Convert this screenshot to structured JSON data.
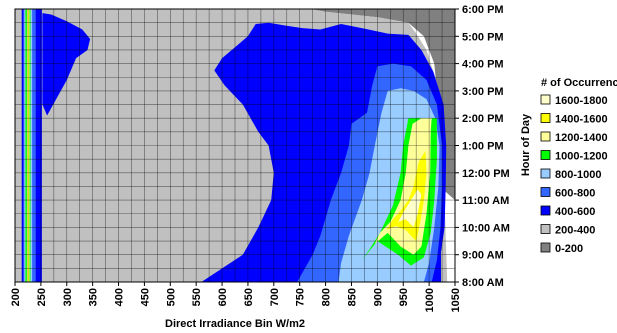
{
  "chart_data": {
    "type": "contour",
    "xlabel": "Direct Irradiance Bin W/m2",
    "ylabel": "Hour of Day",
    "x_ticks": [
      "200",
      "250",
      "300",
      "350",
      "400",
      "450",
      "500",
      "550",
      "600",
      "650",
      "700",
      "750",
      "800",
      "850",
      "900",
      "950",
      "1000",
      "1050"
    ],
    "y_ticks": [
      "8:00 AM",
      "9:00 AM",
      "10:00 AM",
      "11:00 AM",
      "12:00 PM",
      "1:00 PM",
      "2:00 PM",
      "3:00 PM",
      "4:00 PM",
      "5:00 PM",
      "6:00 PM"
    ],
    "xlim": [
      200,
      1050
    ],
    "ylim_hours": [
      8,
      18
    ],
    "grid": true,
    "legend": {
      "title": "# of Occurrences",
      "position": "right",
      "items": [
        {
          "label": "1600-1800",
          "color": "#ffffcc"
        },
        {
          "label": "1400-1600",
          "color": "#ffff00"
        },
        {
          "label": "1200-1400",
          "color": "#ffff99"
        },
        {
          "label": "1000-1200",
          "color": "#00ff00"
        },
        {
          "label": "800-1000",
          "color": "#99ccff"
        },
        {
          "label": "600-800",
          "color": "#3366ff"
        },
        {
          "label": "400-600",
          "color": "#0000ff"
        },
        {
          "label": "200-400",
          "color": "#c0c0c0"
        },
        {
          "label": "0-200",
          "color": "#808080"
        }
      ]
    },
    "regions": [
      {
        "level": "0-200",
        "color": "#808080",
        "points": [
          [
            770,
            18
          ],
          [
            1050,
            18
          ],
          [
            1050,
            11
          ],
          [
            1020,
            11.5
          ],
          [
            1020,
            14
          ],
          [
            1010,
            16
          ],
          [
            990,
            17
          ],
          [
            960,
            17.5
          ],
          [
            900,
            17.7
          ],
          [
            800,
            17.9
          ]
        ]
      },
      {
        "level": "200-400",
        "color": "#c0c0c0",
        "points": [
          [
            200,
            8
          ],
          [
            1035,
            8
          ],
          [
            1030,
            11
          ],
          [
            1025,
            13.5
          ],
          [
            1015,
            15.3
          ],
          [
            995,
            16.5
          ],
          [
            975,
            17.1
          ],
          [
            960,
            17.5
          ],
          [
            900,
            17.7
          ],
          [
            800,
            17.9
          ],
          [
            770,
            18
          ],
          [
            200,
            18
          ]
        ]
      },
      {
        "level": "400-600",
        "color": "#0000ff",
        "points": [
          [
            213,
            8
          ],
          [
            252,
            8
          ],
          [
            252,
            18
          ],
          [
            213,
            18
          ]
        ]
      },
      {
        "level": "400-600",
        "color": "#0000ff",
        "points": [
          [
            253,
            17.85
          ],
          [
            270,
            17.8
          ],
          [
            300,
            17.55
          ],
          [
            330,
            17.25
          ],
          [
            345,
            16.9
          ],
          [
            340,
            16.5
          ],
          [
            318,
            16.2
          ],
          [
            300,
            15.4
          ],
          [
            262,
            14.1
          ],
          [
            253,
            14.5
          ]
        ]
      },
      {
        "level": "400-600",
        "color": "#0000ff",
        "points": [
          [
            560,
            8
          ],
          [
            1023,
            8
          ],
          [
            1023,
            9.1
          ],
          [
            1030,
            10
          ],
          [
            1032,
            11.5
          ],
          [
            1033,
            13
          ],
          [
            1028,
            14.5
          ],
          [
            1008,
            15.7
          ],
          [
            985,
            16.5
          ],
          [
            960,
            17.05
          ],
          [
            920,
            17.1
          ],
          [
            870,
            17.3
          ],
          [
            830,
            17.45
          ],
          [
            790,
            17.25
          ],
          [
            755,
            17.3
          ],
          [
            720,
            17.4
          ],
          [
            690,
            17.5
          ],
          [
            665,
            17.45
          ],
          [
            650,
            17.0
          ],
          [
            625,
            16.6
          ],
          [
            600,
            16.2
          ],
          [
            585,
            15.75
          ],
          [
            605,
            15.2
          ],
          [
            640,
            14.5
          ],
          [
            670,
            13.5
          ],
          [
            690,
            13.0
          ],
          [
            700,
            12.0
          ],
          [
            695,
            11.0
          ],
          [
            670,
            10.0
          ],
          [
            640,
            9.0
          ],
          [
            600,
            8.5
          ]
        ]
      },
      {
        "level": "600-800",
        "color": "#3366ff",
        "points": [
          [
            216,
            8
          ],
          [
            240,
            8
          ],
          [
            240,
            18
          ],
          [
            216,
            18
          ]
        ]
      },
      {
        "level": "600-800",
        "color": "#3366ff",
        "points": [
          [
            745,
            8
          ],
          [
            1005,
            8
          ],
          [
            1015,
            8.8
          ],
          [
            1022,
            10
          ],
          [
            1025,
            11.5
          ],
          [
            1025,
            13
          ],
          [
            1015,
            14.5
          ],
          [
            995,
            15.4
          ],
          [
            965,
            15.9
          ],
          [
            930,
            16.0
          ],
          [
            900,
            15.9
          ],
          [
            890,
            15.2
          ],
          [
            880,
            14.2
          ],
          [
            850,
            13.8
          ],
          [
            845,
            13.0
          ],
          [
            830,
            12.0
          ],
          [
            810,
            11.0
          ],
          [
            790,
            9.7
          ],
          [
            775,
            9.0
          ]
        ]
      },
      {
        "level": "800-1000",
        "color": "#99ccff",
        "points": [
          [
            218,
            8
          ],
          [
            233,
            8
          ],
          [
            233,
            18
          ],
          [
            218,
            18
          ]
        ]
      },
      {
        "level": "800-1000",
        "color": "#99ccff",
        "points": [
          [
            825,
            8
          ],
          [
            990,
            8
          ],
          [
            1000,
            8.7
          ],
          [
            1010,
            10
          ],
          [
            1018,
            11.5
          ],
          [
            1020,
            13
          ],
          [
            1012,
            14.0
          ],
          [
            995,
            14.7
          ],
          [
            970,
            15.0
          ],
          [
            945,
            15.1
          ],
          [
            920,
            15.0
          ],
          [
            908,
            14.2
          ],
          [
            895,
            13.0
          ],
          [
            885,
            12.0
          ],
          [
            870,
            11.0
          ],
          [
            845,
            9.7
          ],
          [
            830,
            8.7
          ]
        ]
      },
      {
        "level": "1000-1200",
        "color": "#00ff00",
        "points": [
          [
            220,
            8
          ],
          [
            230,
            8
          ],
          [
            230,
            18
          ],
          [
            220,
            18
          ]
        ]
      },
      {
        "level": "1000-1200",
        "color": "#00ff00",
        "points": [
          [
            870,
            8.8
          ],
          [
            900,
            9.5
          ],
          [
            940,
            9.0
          ],
          [
            965,
            8.6
          ],
          [
            990,
            8.9
          ],
          [
            1003,
            9.8
          ],
          [
            1010,
            11
          ],
          [
            1015,
            12.5
          ],
          [
            1015,
            14.0
          ],
          [
            990,
            14.0
          ],
          [
            960,
            14.0
          ],
          [
            955,
            13.5
          ],
          [
            950,
            13.0
          ],
          [
            945,
            12.0
          ],
          [
            930,
            10.8
          ],
          [
            905,
            9.8
          ],
          [
            885,
            9.2
          ]
        ]
      },
      {
        "level": "1200-1400",
        "color": "#ffff99",
        "points": [
          [
            223,
            8
          ],
          [
            228,
            8
          ],
          [
            228,
            18
          ],
          [
            223,
            18
          ]
        ]
      },
      {
        "level": "1200-1400",
        "color": "#ffff99",
        "points": [
          [
            895,
            9.4
          ],
          [
            920,
            9.8
          ],
          [
            945,
            9.3
          ],
          [
            970,
            9.0
          ],
          [
            985,
            9.3
          ],
          [
            995,
            10.5
          ],
          [
            1002,
            12.0
          ],
          [
            1003,
            13.5
          ],
          [
            1005,
            14.0
          ],
          [
            985,
            14.0
          ],
          [
            968,
            13.8
          ],
          [
            960,
            13.0
          ],
          [
            955,
            12.0
          ],
          [
            945,
            11.0
          ],
          [
            925,
            10.2
          ],
          [
            905,
            9.8
          ]
        ]
      },
      {
        "level": "1400-1600",
        "color": "#ffff00",
        "points": [
          [
            225,
            8
          ],
          [
            227,
            8
          ],
          [
            227,
            18
          ],
          [
            225,
            18
          ]
        ]
      },
      {
        "level": "1400-1600",
        "color": "#ffff00",
        "points": [
          [
            918,
            9.9
          ],
          [
            935,
            10.05
          ],
          [
            955,
            9.9
          ],
          [
            975,
            9.5
          ],
          [
            983,
            10.2
          ],
          [
            990,
            11.0
          ],
          [
            995,
            12.0
          ],
          [
            993,
            12.8
          ],
          [
            980,
            12.4
          ],
          [
            970,
            11.5
          ],
          [
            960,
            11.0
          ],
          [
            945,
            10.6
          ],
          [
            930,
            10.3
          ]
        ]
      },
      {
        "level": "1600-1800",
        "color": "#ffffcc",
        "points": [
          [
            940,
            10.2
          ],
          [
            955,
            10.3
          ],
          [
            970,
            10.0
          ],
          [
            978,
            10.5
          ],
          [
            985,
            11.2
          ],
          [
            978,
            11.4
          ],
          [
            965,
            11.0
          ],
          [
            955,
            10.7
          ]
        ]
      }
    ]
  }
}
